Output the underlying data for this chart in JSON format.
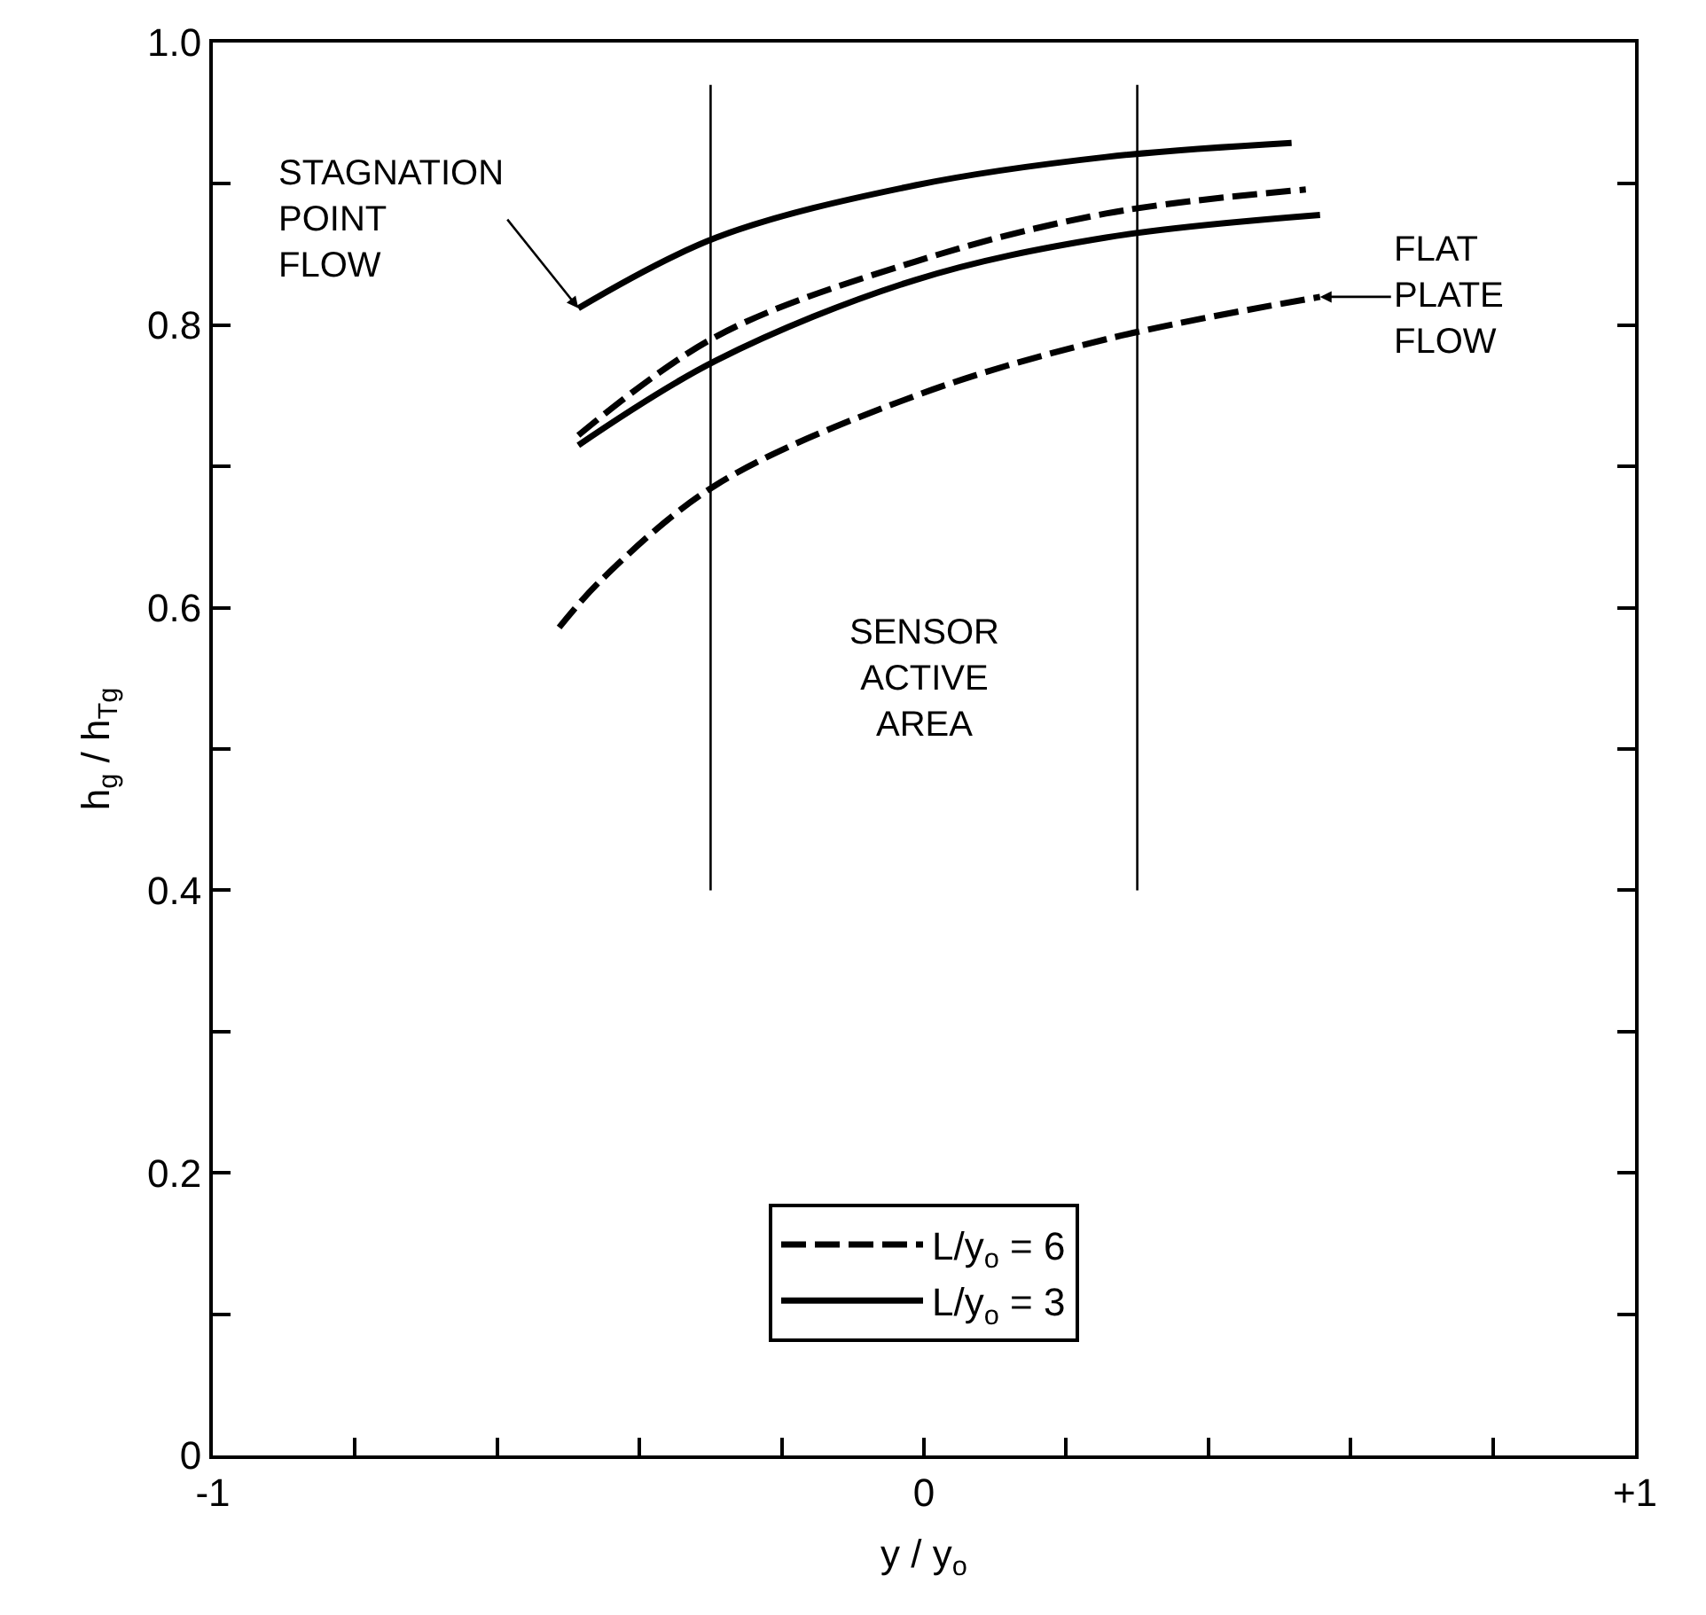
{
  "chart_data": {
    "type": "line",
    "xlabel": "y / y$_{o}$",
    "ylabel": "h$_{g}$ / h$_{Tg}$",
    "xlim": [
      -1,
      1
    ],
    "ylim": [
      0,
      1.0
    ],
    "xticks": [
      {
        "value": -1,
        "label": "-1"
      },
      {
        "value": -0.8,
        "label": null
      },
      {
        "value": -0.6,
        "label": null
      },
      {
        "value": -0.4,
        "label": null
      },
      {
        "value": -0.2,
        "label": null
      },
      0,
      {
        "value": 0.2,
        "label": null
      },
      {
        "value": 0.4,
        "label": null
      },
      {
        "value": 0.6,
        "label": null
      },
      {
        "value": 0.8,
        "label": null
      },
      {
        "value": 1,
        "label": "+1"
      }
    ],
    "yticks": [
      0,
      {
        "value": 0.1,
        "label": null
      },
      0.2,
      {
        "value": 0.3,
        "label": null
      },
      0.4,
      {
        "value": 0.5,
        "label": null
      },
      0.6,
      {
        "value": 0.7,
        "label": null
      },
      0.8,
      {
        "value": 0.9,
        "label": null
      },
      {
        "value": 1.0,
        "label": "1.0"
      }
    ],
    "legend": "bottom",
    "marker": "none",
    "series": [
      {
        "name": "L/y$_{o}$ = 6",
        "color": "#000000",
        "line_style": "dashed",
        "x": [
          -0.486,
          -0.292,
          -0.012,
          0.256,
          0.537
        ],
        "values": [
          0.722,
          0.792,
          0.845,
          0.879,
          0.896
        ]
      },
      {
        "name": "L/y$_{o}$ = 3",
        "color": "#000000",
        "line_style": "solid",
        "x": [
          -0.486,
          -0.292,
          -0.012,
          0.256,
          0.517
        ],
        "values": [
          0.812,
          0.862,
          0.899,
          0.919,
          0.929
        ]
      },
      {
        "color": "#000000",
        "line_style": "solid",
        "x": [
          -0.486,
          -0.292,
          -0.012,
          0.256,
          0.557
        ],
        "values": [
          0.715,
          0.775,
          0.832,
          0.862,
          0.878
        ]
      },
      {
        "color": "#000000",
        "line_style": "dashed",
        "x": [
          -0.513,
          -0.453,
          -0.292,
          -0.012,
          0.256,
          0.557
        ],
        "values": [
          0.586,
          0.62,
          0.687,
          0.75,
          0.79,
          0.82
        ]
      }
    ],
    "ref_lines": [
      {
        "axis": "x",
        "value": -0.3,
        "color": "#000000",
        "line_style": "solid"
      },
      {
        "axis": "x",
        "value": 0.3,
        "color": "#000000",
        "line_style": "solid"
      }
    ],
    "annotations": [
      {
        "text": "STAGNATION\nPOINT\nFLOW",
        "x": -0.486,
        "y": 0.812
      },
      {
        "text": "FLAT\nPLATE\nFLOW",
        "x": 0.557,
        "y": 0.82
      },
      "SENSOR\nACTIVE\nAREA"
    ]
  }
}
